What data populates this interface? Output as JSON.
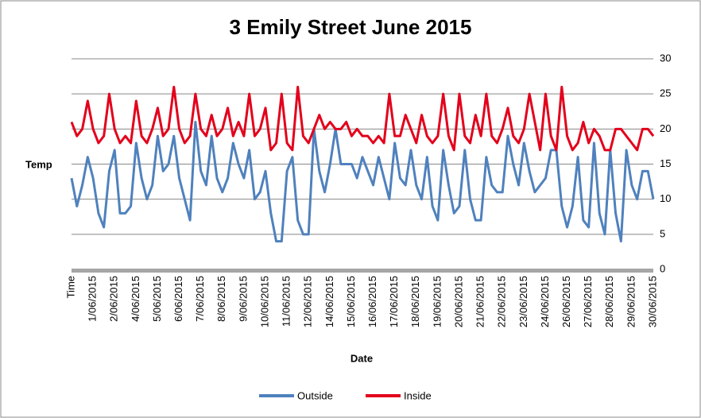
{
  "chart_data": {
    "type": "line",
    "title": "3 Emily Street June 2015",
    "x_label": "Date",
    "y_label": "Temp",
    "categories": [
      "Time",
      null,
      null,
      null,
      "1/06/2015",
      null,
      null,
      null,
      "2/06/2015",
      null,
      null,
      null,
      "4/06/2015",
      null,
      null,
      null,
      "5/06/2015",
      null,
      null,
      null,
      "6/06/2015",
      null,
      null,
      null,
      "7/06/2015",
      null,
      null,
      null,
      "8/06/2015",
      null,
      null,
      null,
      "9/06/2015",
      null,
      null,
      null,
      "10/06/2015",
      null,
      null,
      null,
      "11/06/2015",
      null,
      null,
      null,
      "12/06/2015",
      null,
      null,
      null,
      "14/06/2015",
      null,
      null,
      null,
      "15/06/2015",
      null,
      null,
      null,
      "16/06/2015",
      null,
      null,
      null,
      "17/06/2015",
      null,
      null,
      null,
      "18/06/2015",
      null,
      null,
      null,
      "19/06/2015",
      null,
      null,
      null,
      "20/06/2015",
      null,
      null,
      null,
      "21/06/2015",
      null,
      null,
      null,
      "22/06/2015",
      null,
      null,
      null,
      "23/06/2015",
      null,
      null,
      null,
      "24/06/2015",
      null,
      null,
      null,
      "26/06/2015",
      null,
      null,
      null,
      "27/06/2015",
      null,
      null,
      null,
      "28/06/2015",
      null,
      null,
      null,
      "29/06/2015",
      null,
      null,
      null,
      "30/06/2015"
    ],
    "series": [
      {
        "name": "Outside",
        "color": "#4f81bd",
        "values": [
          13,
          9,
          12,
          16,
          13,
          8,
          6,
          14,
          17,
          8,
          8,
          9,
          18,
          13,
          10,
          12,
          19,
          14,
          15,
          19,
          13,
          10,
          7,
          21,
          14,
          12,
          19,
          13,
          11,
          13,
          18,
          15,
          13,
          17,
          10,
          11,
          14,
          8,
          4,
          4,
          14,
          16,
          7,
          5,
          5,
          20,
          14,
          11,
          15,
          20,
          15,
          15,
          15,
          13,
          16,
          14,
          12,
          16,
          13,
          10,
          18,
          13,
          12,
          17,
          12,
          10,
          16,
          9,
          7,
          17,
          12,
          8,
          9,
          17,
          10,
          7,
          7,
          16,
          12,
          11,
          11,
          19,
          15,
          12,
          18,
          14,
          11,
          12,
          13,
          17,
          17,
          9,
          6,
          9,
          16,
          7,
          6,
          18,
          8,
          5,
          17,
          8,
          4,
          17,
          12,
          10,
          14,
          14,
          10
        ]
      },
      {
        "name": "Inside",
        "color": "#e3001b",
        "values": [
          21,
          19,
          20,
          24,
          20,
          18,
          19,
          25,
          20,
          18,
          19,
          18,
          24,
          19,
          18,
          20,
          23,
          19,
          20,
          26,
          20,
          18,
          19,
          25,
          20,
          19,
          22,
          19,
          20,
          23,
          19,
          21,
          19,
          25,
          19,
          20,
          23,
          17,
          18,
          25,
          18,
          17,
          26,
          19,
          18,
          20,
          22,
          20,
          21,
          20,
          20,
          21,
          19,
          20,
          19,
          19,
          18,
          19,
          18,
          25,
          19,
          19,
          22,
          20,
          18,
          22,
          19,
          18,
          19,
          25,
          19,
          17,
          25,
          19,
          18,
          22,
          19,
          25,
          19,
          18,
          20,
          23,
          19,
          18,
          20,
          25,
          21,
          17,
          25,
          19,
          17,
          26,
          19,
          17,
          18,
          21,
          18,
          20,
          19,
          17,
          17,
          20,
          20,
          19,
          18,
          17,
          20,
          20,
          19
        ]
      }
    ],
    "ylim": [
      0,
      30
    ],
    "yticks": [
      0,
      5,
      10,
      15,
      20,
      25,
      30
    ],
    "grid": true,
    "legend": "bottom"
  }
}
